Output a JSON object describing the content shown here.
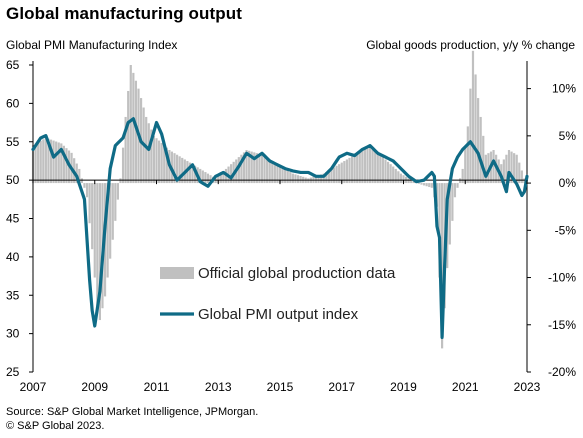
{
  "header": {
    "title": "Global manufacturing output",
    "left_axis_title": "Global PMI Manufacturing Index",
    "right_axis_title": "Global goods production, y/y % change"
  },
  "footer": {
    "source_line1": "Source: S&P Global Market Intelligence, JPMorgan.",
    "source_line2": "© S&P Global 2023."
  },
  "colors": {
    "bars": "#c0c0c0",
    "line": "#0f6b86",
    "axis": "#000000",
    "grid": "#dddddd"
  },
  "chart_data": {
    "type": "bar+line",
    "title": "Global manufacturing output",
    "x_axis": {
      "ticks": [
        "2007",
        "2009",
        "2011",
        "2013",
        "2015",
        "2017",
        "2019",
        "2021",
        "2023"
      ],
      "range": [
        "2007-01",
        "2023-01"
      ]
    },
    "left_axis": {
      "label": "Global PMI Manufacturing Index",
      "ylim": [
        25,
        65
      ],
      "ticks": [
        "25",
        "30",
        "35",
        "40",
        "45",
        "50",
        "55",
        "60",
        "65"
      ]
    },
    "right_axis": {
      "label": "Global goods production, y/y % change",
      "ylim": [
        -20,
        12.5
      ],
      "ticks": [
        "-20%",
        "-15%",
        "-10%",
        "-5%",
        "0%",
        "5%",
        "10%"
      ],
      "tick_values": [
        -20,
        -15,
        -10,
        -5,
        0,
        5,
        10
      ]
    },
    "legend": {
      "placement": "center-bottom",
      "entries": [
        "Official global production data",
        "Global PMI output index"
      ]
    },
    "series": [
      {
        "name": "Official global production data",
        "type": "bar",
        "axis": "right",
        "step": "month",
        "start": "2007-01",
        "points": [
          [
            "2007-01",
            4.0
          ],
          [
            "2007-06",
            4.8
          ],
          [
            "2007-12",
            4.2
          ],
          [
            "2008-04",
            3.2
          ],
          [
            "2008-07",
            1.5
          ],
          [
            "2008-10",
            -1.5
          ],
          [
            "2008-12",
            -7.0
          ],
          [
            "2009-02",
            -13.0
          ],
          [
            "2009-03",
            -14.5
          ],
          [
            "2009-05",
            -12.0
          ],
          [
            "2009-07",
            -8.0
          ],
          [
            "2009-09",
            -4.0
          ],
          [
            "2009-11",
            0.5
          ],
          [
            "2010-01",
            7.0
          ],
          [
            "2010-03",
            12.5
          ],
          [
            "2010-06",
            10.0
          ],
          [
            "2010-09",
            7.0
          ],
          [
            "2010-12",
            5.0
          ],
          [
            "2011-06",
            3.5
          ],
          [
            "2011-12",
            2.5
          ],
          [
            "2012-06",
            1.5
          ],
          [
            "2012-12",
            0.5
          ],
          [
            "2013-06",
            2.0
          ],
          [
            "2013-12",
            3.5
          ],
          [
            "2014-06",
            3.0
          ],
          [
            "2014-12",
            2.0
          ],
          [
            "2015-06",
            1.0
          ],
          [
            "2015-12",
            0.5
          ],
          [
            "2016-06",
            1.0
          ],
          [
            "2016-12",
            2.0
          ],
          [
            "2017-06",
            3.0
          ],
          [
            "2017-12",
            4.0
          ],
          [
            "2018-06",
            2.5
          ],
          [
            "2018-12",
            1.0
          ],
          [
            "2019-06",
            0.0
          ],
          [
            "2019-12",
            -0.5
          ],
          [
            "2020-02",
            -2.5
          ],
          [
            "2020-04",
            -17.5
          ],
          [
            "2020-06",
            -9.0
          ],
          [
            "2020-09",
            -1.5
          ],
          [
            "2020-12",
            1.5
          ],
          [
            "2021-02",
            6.0
          ],
          [
            "2021-04",
            14.0
          ],
          [
            "2021-06",
            9.0
          ],
          [
            "2021-09",
            3.0
          ],
          [
            "2021-12",
            3.5
          ],
          [
            "2022-03",
            2.0
          ],
          [
            "2022-06",
            3.5
          ],
          [
            "2022-09",
            3.0
          ],
          [
            "2022-12",
            0.5
          ],
          [
            "2023-01",
            0.0
          ]
        ]
      },
      {
        "name": "Global PMI output index",
        "type": "line",
        "axis": "left",
        "points": [
          [
            "2007-01",
            54.0
          ],
          [
            "2007-04",
            55.5
          ],
          [
            "2007-06",
            55.8
          ],
          [
            "2007-09",
            53.0
          ],
          [
            "2007-12",
            54.0
          ],
          [
            "2008-03",
            52.0
          ],
          [
            "2008-06",
            50.5
          ],
          [
            "2008-09",
            47.5
          ],
          [
            "2008-11",
            37.0
          ],
          [
            "2008-12",
            33.0
          ],
          [
            "2009-01",
            31.0
          ],
          [
            "2009-03",
            35.5
          ],
          [
            "2009-05",
            44.0
          ],
          [
            "2009-07",
            51.5
          ],
          [
            "2009-09",
            54.5
          ],
          [
            "2009-12",
            55.5
          ],
          [
            "2010-02",
            57.5
          ],
          [
            "2010-04",
            58.0
          ],
          [
            "2010-07",
            55.0
          ],
          [
            "2010-10",
            54.0
          ],
          [
            "2011-01",
            57.5
          ],
          [
            "2011-03",
            56.0
          ],
          [
            "2011-06",
            52.0
          ],
          [
            "2011-09",
            50.0
          ],
          [
            "2011-12",
            51.0
          ],
          [
            "2012-03",
            52.0
          ],
          [
            "2012-06",
            49.8
          ],
          [
            "2012-09",
            49.2
          ],
          [
            "2012-12",
            50.5
          ],
          [
            "2013-03",
            51.0
          ],
          [
            "2013-06",
            50.3
          ],
          [
            "2013-09",
            51.8
          ],
          [
            "2013-12",
            53.5
          ],
          [
            "2014-03",
            52.8
          ],
          [
            "2014-06",
            53.5
          ],
          [
            "2014-09",
            52.5
          ],
          [
            "2014-12",
            52.0
          ],
          [
            "2015-03",
            51.5
          ],
          [
            "2015-06",
            51.2
          ],
          [
            "2015-09",
            51.0
          ],
          [
            "2015-12",
            51.0
          ],
          [
            "2016-03",
            50.5
          ],
          [
            "2016-06",
            50.5
          ],
          [
            "2016-09",
            51.5
          ],
          [
            "2016-12",
            53.0
          ],
          [
            "2017-03",
            53.5
          ],
          [
            "2017-06",
            53.2
          ],
          [
            "2017-09",
            54.0
          ],
          [
            "2017-12",
            54.5
          ],
          [
            "2018-03",
            53.5
          ],
          [
            "2018-06",
            53.0
          ],
          [
            "2018-09",
            52.5
          ],
          [
            "2018-12",
            51.5
          ],
          [
            "2019-03",
            50.5
          ],
          [
            "2019-06",
            49.8
          ],
          [
            "2019-09",
            50.0
          ],
          [
            "2019-12",
            51.0
          ],
          [
            "2020-01",
            50.5
          ],
          [
            "2020-02",
            44.0
          ],
          [
            "2020-03",
            42.5
          ],
          [
            "2020-04",
            29.5
          ],
          [
            "2020-05",
            39.0
          ],
          [
            "2020-06",
            47.5
          ],
          [
            "2020-08",
            51.5
          ],
          [
            "2020-10",
            53.0
          ],
          [
            "2020-12",
            54.0
          ],
          [
            "2021-03",
            55.0
          ],
          [
            "2021-06",
            53.5
          ],
          [
            "2021-09",
            50.5
          ],
          [
            "2021-12",
            52.5
          ],
          [
            "2022-03",
            50.5
          ],
          [
            "2022-05",
            48.5
          ],
          [
            "2022-06",
            51.0
          ],
          [
            "2022-09",
            49.5
          ],
          [
            "2022-11",
            48.0
          ],
          [
            "2022-12",
            48.5
          ],
          [
            "2023-01",
            50.5
          ]
        ]
      }
    ]
  }
}
